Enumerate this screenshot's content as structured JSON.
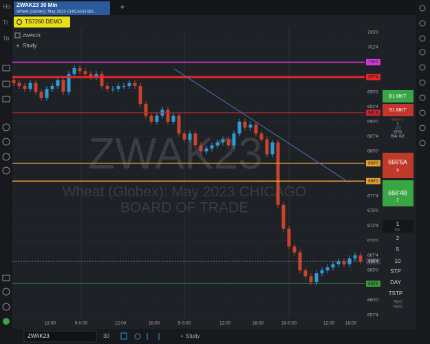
{
  "tabs": [
    "Ho",
    "Tr",
    "Ta"
  ],
  "window": {
    "title": "ZWAK23 30 Min",
    "subtitle": "Wheat (Globex): May 2023 CHICAGO BO..."
  },
  "account": "TS7260 DEMO",
  "chart_data": {
    "type": "candlestick",
    "symbol": "ZWAK23",
    "study_button": "Study",
    "watermark": "ZWAK23",
    "watermark_subtitle": [
      "Wheat (Globex): May 2023 CHICAGO",
      "BOARD OF TRADE"
    ],
    "up_color": "#2e9bd6",
    "down_color": "#c8442c",
    "open": [
      697,
      696.5,
      696,
      695.5,
      696.5,
      695,
      694,
      695.5,
      696,
      697,
      695,
      698,
      699,
      698.5,
      698,
      697.5,
      698,
      696,
      695.5,
      695.5,
      696,
      696,
      696.5,
      696,
      693,
      691,
      690,
      691,
      692,
      690,
      691,
      688,
      687,
      688,
      686,
      685,
      685.5,
      686,
      686.5,
      687,
      686,
      688,
      690,
      689,
      689.5,
      688,
      687,
      684.5,
      686.5,
      676,
      672,
      669,
      668,
      665,
      664,
      663,
      664.5,
      665,
      665.5,
      666,
      666.5,
      666,
      667,
      667.5
    ],
    "high": [
      697.5,
      697,
      696.5,
      697,
      697,
      695.5,
      696,
      696.5,
      697.5,
      697.5,
      698.5,
      699.5,
      699.5,
      699,
      698.5,
      698.5,
      698.5,
      696.5,
      696,
      696.5,
      696.5,
      697,
      697,
      696.5,
      693.5,
      691.5,
      691.5,
      692.5,
      692.5,
      691.5,
      691.5,
      688.5,
      688.5,
      688.5,
      686.5,
      686,
      686.5,
      687,
      687.5,
      687.5,
      688.5,
      690.5,
      690.5,
      690,
      690,
      688.5,
      687.5,
      687,
      687,
      676.5,
      672.5,
      669.5,
      668.5,
      665.5,
      664.5,
      665,
      665.5,
      666,
      666.5,
      667,
      667,
      667.5,
      668,
      668
    ],
    "low": [
      696,
      695.5,
      695,
      695,
      694.5,
      693.5,
      693.5,
      695,
      695.5,
      694.5,
      694.5,
      697.5,
      698,
      697.5,
      697,
      697,
      695.5,
      695,
      695,
      695,
      695.5,
      695.5,
      695.5,
      692.5,
      690.5,
      689.5,
      689.5,
      690.5,
      689.5,
      689.5,
      687.5,
      686.5,
      686.5,
      685.5,
      684.5,
      684.5,
      685,
      685.5,
      686,
      685.5,
      685.5,
      687.5,
      688.5,
      688.5,
      687.5,
      686.5,
      684,
      684,
      675.5,
      671.5,
      668.5,
      667.5,
      664.5,
      663.5,
      662.5,
      662.5,
      664,
      664.5,
      665,
      665.5,
      665.5,
      665.5,
      666.5,
      666
    ],
    "close": [
      696.5,
      696,
      695.5,
      696.5,
      695,
      694,
      695.5,
      696,
      697,
      695,
      698,
      699,
      698.5,
      698,
      697.5,
      698,
      696,
      695.5,
      695.5,
      696,
      696,
      696.5,
      696,
      693,
      691,
      690,
      691,
      692,
      690,
      691,
      688,
      687,
      688,
      686,
      685,
      685.5,
      686,
      686.5,
      687,
      686,
      688,
      690,
      689,
      689.5,
      688,
      687,
      684.5,
      686.5,
      676,
      672,
      669,
      668,
      665,
      664,
      663,
      664.5,
      665,
      665.5,
      666,
      666.5,
      666,
      667,
      667.5,
      666.5
    ],
    "xlim": [
      -0.25,
      63.75
    ],
    "xticks": [
      {
        "value": 6.6,
        "label": "18:00"
      },
      {
        "value": 12.25,
        "label": "9-0:00"
      },
      {
        "value": 19.4,
        "label": "12:00"
      },
      {
        "value": 25.5,
        "label": "18:00"
      },
      {
        "value": 31,
        "label": "9-0:00"
      },
      {
        "value": 38.4,
        "label": "12:00"
      },
      {
        "value": 44.4,
        "label": "18:00"
      },
      {
        "value": 50,
        "label": "10-0:00"
      },
      {
        "value": 57.25,
        "label": "12:00"
      },
      {
        "value": 61.25,
        "label": "18:00"
      }
    ],
    "sessions": [
      12.25,
      31,
      50
    ],
    "ylim": [
      657,
      705.6
    ],
    "yticks": [
      {
        "value": 705,
        "label": "705'0"
      },
      {
        "value": 702.5,
        "label": "702'4"
      },
      {
        "value": 695,
        "label": "695'0"
      },
      {
        "value": 692.5,
        "label": "692'4"
      },
      {
        "value": 690,
        "label": "690'0"
      },
      {
        "value": 687.5,
        "label": "687'4"
      },
      {
        "value": 685,
        "label": "685'0"
      },
      {
        "value": 677.5,
        "label": "677'4"
      },
      {
        "value": 675,
        "label": "675'0"
      },
      {
        "value": 672.5,
        "label": "672'4"
      },
      {
        "value": 670,
        "label": "670'0"
      },
      {
        "value": 667.5,
        "label": "667'4"
      },
      {
        "value": 665,
        "label": "665'0"
      },
      {
        "value": 660,
        "label": "660'0"
      },
      {
        "value": 657.5,
        "label": "657'4"
      }
    ],
    "levels": [
      {
        "value": 700,
        "label": "700'0",
        "color": "#d63ad6",
        "width": 1.5
      },
      {
        "value": 697.5,
        "label": "697'4",
        "color": "#e8262a",
        "width": 3
      },
      {
        "value": 691.5,
        "label": "691'4",
        "color": "#c8262a",
        "width": 1
      },
      {
        "value": 683,
        "label": "683'0",
        "color": "#e8a030",
        "width": 1
      },
      {
        "value": 680,
        "label": "680'0",
        "color": "#e8a030",
        "width": 1.5
      },
      {
        "value": 662.75,
        "label": "662'6",
        "color": "#3a9a3a",
        "width": 1
      }
    ],
    "last": {
      "value": 666.5,
      "label": "666'4"
    }
  },
  "order_panel": {
    "buy_market": "B1 MKT",
    "sell_market": "S1 MKT",
    "info": [
      "666'4  1",
      "1",
      "-3'0",
      "3723",
      "B/A: 0/2"
    ],
    "ask": {
      "price": "666'6A",
      "size": "9"
    },
    "bid": {
      "price": "666'4B",
      "size": "2"
    },
    "quantity": "1",
    "quantity_unit": "lots",
    "quantities": [
      "2",
      "5",
      "10"
    ],
    "order_types": [
      "STP",
      "DAY",
      "TSTP"
    ],
    "limits": [
      "750'0",
      "700'0"
    ]
  },
  "bottom_bar": {
    "symbol": "ZWAK23",
    "interval": "30",
    "study": "Study"
  }
}
